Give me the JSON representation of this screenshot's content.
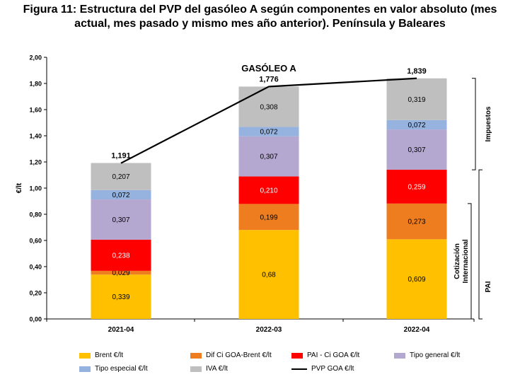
{
  "title_line1": "Figura 11: Estructura del PVP del gasóleo A según componentes en valor absoluto (mes",
  "title_line2": "actual, mes pasado y mismo mes año anterior). Península y Baleares",
  "chart_data": {
    "type": "bar",
    "stacked": true,
    "annotation": "GASÓLEO A",
    "ylabel": "€/lt",
    "ylim": [
      0,
      2.0
    ],
    "yticks": [
      "0,00",
      "0,20",
      "0,40",
      "0,60",
      "0,80",
      "1,00",
      "1,20",
      "1,40",
      "1,60",
      "1,80",
      "2,00"
    ],
    "categories": [
      "2021-04",
      "2022-03",
      "2022-04"
    ],
    "series": [
      {
        "name": "Brent €/lt",
        "color": "#FFC000",
        "values": [
          0.339,
          0.68,
          0.609
        ],
        "labels": [
          "0,339",
          "0,68",
          "0,609"
        ]
      },
      {
        "name": "Dif Ci GOA-Brent €/lt",
        "color": "#ED7D1F",
        "values": [
          0.029,
          0.199,
          0.273
        ],
        "labels": [
          "0,029",
          "0,199",
          "0,273"
        ]
      },
      {
        "name": "PAI - Ci GOA €/lt",
        "color": "#FF0000",
        "values": [
          0.238,
          0.21,
          0.259
        ],
        "labels": [
          "0,238",
          "0,210",
          "0,259"
        ]
      },
      {
        "name": "Tipo general €/lt",
        "color": "#B4A7D0",
        "values": [
          0.307,
          0.307,
          0.307
        ],
        "labels": [
          "0,307",
          "0,307",
          "0,307"
        ]
      },
      {
        "name": "Tipo especial €/lt",
        "color": "#95B3DE",
        "values": [
          0.072,
          0.072,
          0.072
        ],
        "labels": [
          "0,072",
          "0,072",
          "0,072"
        ]
      },
      {
        "name": "IVA €/lt",
        "color": "#BFBFBF",
        "values": [
          0.207,
          0.308,
          0.319
        ],
        "labels": [
          "0,207",
          "0,308",
          "0,319"
        ]
      }
    ],
    "line_series": {
      "name": "PVP GOA €/lt",
      "color": "#000000",
      "values": [
        1.191,
        1.776,
        1.839
      ],
      "labels": [
        "1,191",
        "1,776",
        "1,839"
      ]
    },
    "brackets": [
      {
        "label": "Impuestos",
        "range": [
          1.14,
          1.839
        ]
      },
      {
        "label_lines": [
          "Cotización",
          "Internacional"
        ],
        "range": [
          0,
          0.882
        ]
      },
      {
        "label": "PAI",
        "range": [
          0,
          1.14
        ]
      }
    ],
    "legend_position": "bottom"
  }
}
